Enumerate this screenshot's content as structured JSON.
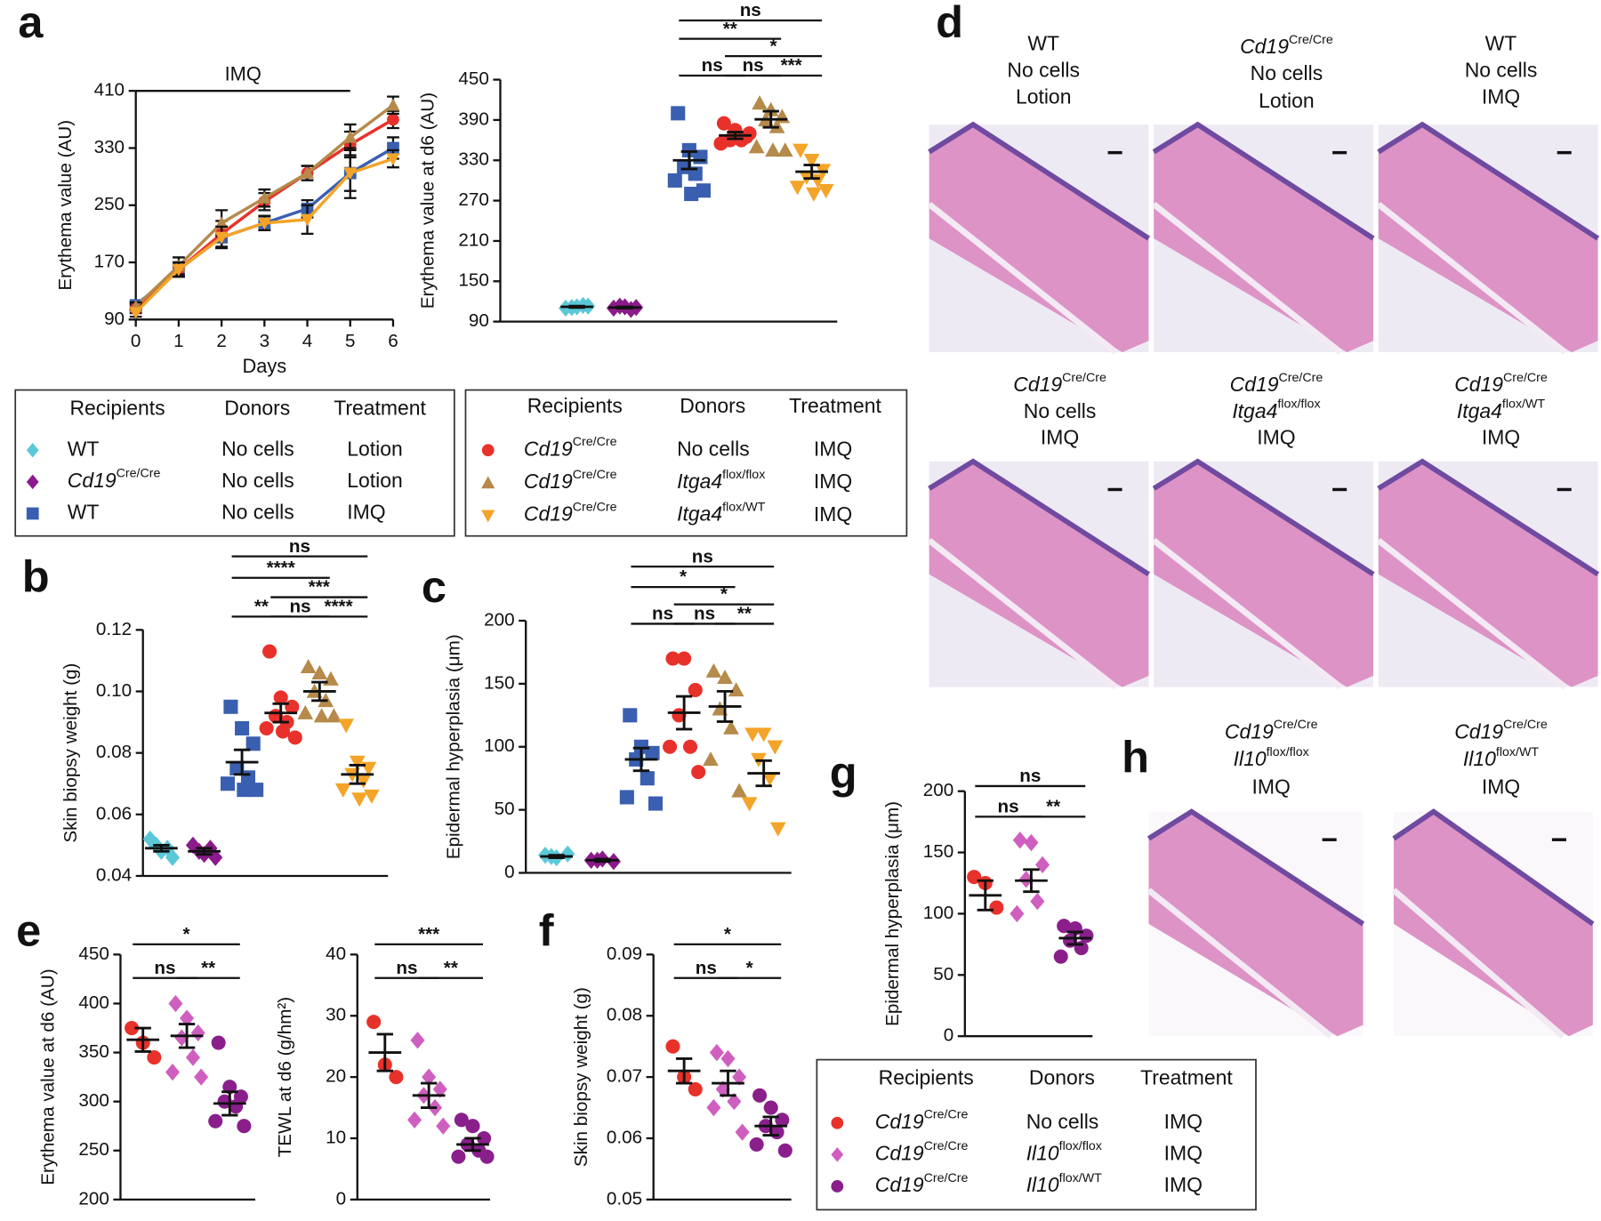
{
  "panel_labels": [
    "a",
    "b",
    "c",
    "d",
    "e",
    "f",
    "g",
    "h"
  ],
  "chart_data": [
    {
      "type": "line",
      "annotation": "IMQ",
      "annotation_span": [
        0,
        5
      ],
      "xlabel": "Days",
      "ylabel": "Erythema value (AU)",
      "x": [
        0,
        1,
        2,
        3,
        4,
        5,
        6
      ],
      "xlim": [
        0,
        6
      ],
      "xticks": [
        0,
        1,
        2,
        3,
        4,
        5,
        6
      ],
      "ylim": [
        90,
        410
      ],
      "yticks": [
        90,
        170,
        250,
        330,
        410
      ],
      "series": [
        {
          "color": "#3a5fb0",
          "marker": "square",
          "values": [
            110,
            160,
            205,
            225,
            245,
            295,
            330
          ],
          "errors": [
            6,
            10,
            15,
            10,
            12,
            25,
            15
          ]
        },
        {
          "color": "#e8312a",
          "marker": "circle",
          "values": [
            105,
            160,
            210,
            255,
            295,
            335,
            370
          ],
          "errors": [
            6,
            10,
            18,
            12,
            10,
            18,
            12
          ]
        },
        {
          "color": "#b58a4a",
          "marker": "triangle",
          "values": [
            108,
            165,
            225,
            260,
            295,
            345,
            390
          ],
          "errors": [
            6,
            12,
            18,
            12,
            10,
            18,
            12
          ]
        },
        {
          "color": "#f4a428",
          "marker": "triangle-down",
          "values": [
            100,
            160,
            205,
            225,
            230,
            295,
            315
          ],
          "errors": [
            6,
            10,
            15,
            10,
            20,
            35,
            12
          ]
        }
      ]
    },
    {
      "type": "strip",
      "ylabel": "Erythema value at d6 (AU)",
      "ylim": [
        90,
        450
      ],
      "yticks": [
        90,
        150,
        210,
        270,
        330,
        390,
        450
      ],
      "series": [
        {
          "color": "#5bc8d8",
          "marker": "diamond",
          "points": [
            110,
            112,
            113,
            111,
            114
          ],
          "mean": 112,
          "sem": 1
        },
        {
          "color": "#8b1a8b",
          "marker": "diamond",
          "points": [
            110,
            112,
            111,
            113,
            108
          ],
          "mean": 111,
          "sem": 1
        },
        {
          "color": "#3a5fb0",
          "marker": "square",
          "points": [
            400,
            345,
            335,
            320,
            310,
            300,
            285,
            280
          ],
          "mean": 330,
          "sem": 13
        },
        {
          "color": "#e8312a",
          "marker": "circle",
          "points": [
            385,
            375,
            365,
            360,
            360,
            355,
            370,
            365
          ],
          "mean": 367,
          "sem": 5
        },
        {
          "color": "#b58a4a",
          "marker": "triangle",
          "points": [
            415,
            405,
            395,
            390,
            380,
            350,
            345,
            345
          ],
          "mean": 391,
          "sem": 12
        },
        {
          "color": "#f4a428",
          "marker": "triangle-down",
          "points": [
            345,
            330,
            315,
            305,
            300,
            290,
            285,
            280
          ],
          "mean": 313,
          "sem": 10
        }
      ],
      "brackets": [
        [
          {
            "from": 2,
            "to": 5,
            "label": "ns"
          }
        ],
        [
          {
            "from": 2,
            "to": 4,
            "label": "**"
          }
        ],
        [
          {
            "from": 3,
            "to": 5,
            "label": "*"
          }
        ],
        [
          {
            "from": 2,
            "to": 3,
            "label": "ns"
          },
          {
            "from": 3,
            "to": 4,
            "label": "ns"
          },
          {
            "from": 4,
            "to": 5,
            "label": "***"
          }
        ]
      ]
    },
    {
      "type": "strip",
      "ylabel": "Skin biopsy weight (g)",
      "ylim": [
        0.04,
        0.12
      ],
      "yticks": [
        0.04,
        0.06,
        0.08,
        {
          "value": 0.1,
          "label": "0.10"
        },
        0.12
      ],
      "series": [
        {
          "color": "#5bc8d8",
          "marker": "diamond",
          "points": [
            0.052,
            0.048,
            0.046,
            0.05,
            0.049
          ],
          "mean": 0.049,
          "sem": 0.001
        },
        {
          "color": "#8b1a8b",
          "marker": "diamond",
          "points": [
            0.05,
            0.047,
            0.046,
            0.048,
            0.049
          ],
          "mean": 0.048,
          "sem": 0.001
        },
        {
          "color": "#3a5fb0",
          "marker": "square",
          "points": [
            0.095,
            0.088,
            0.083,
            0.075,
            0.072,
            0.07,
            0.068,
            0.068
          ],
          "mean": 0.077,
          "sem": 0.004
        },
        {
          "color": "#e8312a",
          "marker": "circle",
          "points": [
            0.113,
            0.098,
            0.095,
            0.092,
            0.09,
            0.088,
            0.085,
            0.087
          ],
          "mean": 0.093,
          "sem": 0.003
        },
        {
          "color": "#b58a4a",
          "marker": "triangle",
          "points": [
            0.108,
            0.106,
            0.104,
            0.1,
            0.097,
            0.093,
            0.092,
            0.092
          ],
          "mean": 0.1,
          "sem": 0.003
        },
        {
          "color": "#f4a428",
          "marker": "triangle-down",
          "points": [
            0.089,
            0.077,
            0.075,
            0.073,
            0.071,
            0.068,
            0.066,
            0.065
          ],
          "mean": 0.073,
          "sem": 0.003
        }
      ],
      "brackets": [
        [
          {
            "from": 2,
            "to": 5,
            "label": "ns"
          }
        ],
        [
          {
            "from": 2,
            "to": 4,
            "label": "****"
          }
        ],
        [
          {
            "from": 3,
            "to": 5,
            "label": "***"
          }
        ],
        [
          {
            "from": 2,
            "to": 3,
            "label": "**"
          },
          {
            "from": 3,
            "to": 4,
            "label": "ns"
          },
          {
            "from": 4,
            "to": 5,
            "label": "****"
          }
        ]
      ]
    },
    {
      "type": "strip",
      "ylabel": "Epidermal hyperplasia (μm)",
      "ylim": [
        0,
        200
      ],
      "yticks": [
        0,
        50,
        100,
        150,
        200
      ],
      "series": [
        {
          "color": "#5bc8d8",
          "marker": "diamond",
          "points": [
            14,
            12,
            15,
            13
          ],
          "mean": 13,
          "sem": 1
        },
        {
          "color": "#8b1a8b",
          "marker": "diamond",
          "points": [
            10,
            11,
            9,
            10
          ],
          "mean": 10,
          "sem": 1
        },
        {
          "color": "#3a5fb0",
          "marker": "square",
          "points": [
            125,
            100,
            95,
            90,
            75,
            60,
            55
          ],
          "mean": 90,
          "sem": 9
        },
        {
          "color": "#e8312a",
          "marker": "circle",
          "points": [
            170,
            170,
            145,
            125,
            100,
            100,
            80
          ],
          "mean": 127,
          "sem": 13
        },
        {
          "color": "#b58a4a",
          "marker": "triangle",
          "points": [
            160,
            155,
            145,
            130,
            115,
            90,
            65
          ],
          "mean": 132,
          "sem": 12
        },
        {
          "color": "#f4a428",
          "marker": "triangle-down",
          "points": [
            110,
            110,
            100,
            90,
            75,
            55,
            35
          ],
          "mean": 79,
          "sem": 10
        }
      ],
      "brackets": [
        [
          {
            "from": 2,
            "to": 5,
            "label": "ns"
          }
        ],
        [
          {
            "from": 2,
            "to": 4,
            "label": "*"
          }
        ],
        [
          {
            "from": 3,
            "to": 5,
            "label": "*"
          }
        ],
        [
          {
            "from": 2,
            "to": 3,
            "label": "ns"
          },
          {
            "from": 3,
            "to": 4,
            "label": "ns"
          },
          {
            "from": 4,
            "to": 5,
            "label": "**"
          }
        ]
      ]
    },
    {
      "type": "strip",
      "ylabel": "Erythema value at d6 (AU)",
      "ylim": [
        200,
        450
      ],
      "yticks": [
        200,
        250,
        300,
        350,
        400,
        450
      ],
      "series": [
        {
          "color": "#e8312a",
          "marker": "circle",
          "points": [
            375,
            360,
            345
          ],
          "mean": 363,
          "sem": 12
        },
        {
          "color": "#cf5fbf",
          "marker": "diamond",
          "points": [
            400,
            385,
            370,
            365,
            345,
            330,
            325
          ],
          "mean": 367,
          "sem": 12
        },
        {
          "color": "#8a1f8c",
          "marker": "circle",
          "points": [
            360,
            315,
            305,
            300,
            295,
            280,
            275
          ],
          "mean": 298,
          "sem": 12
        }
      ],
      "brackets": [
        [
          {
            "from": 0,
            "to": 2,
            "label": "*"
          }
        ],
        [
          {
            "from": 0,
            "to": 1,
            "label": "ns"
          },
          {
            "from": 1,
            "to": 2,
            "label": "**"
          }
        ]
      ]
    },
    {
      "type": "strip",
      "ylabel": "TEWL at d6 (g/hm²)",
      "ylim": [
        0,
        40
      ],
      "yticks": [
        0,
        10,
        20,
        30,
        40
      ],
      "series": [
        {
          "color": "#e8312a",
          "marker": "circle",
          "points": [
            29,
            22,
            20
          ],
          "mean": 24,
          "sem": 3
        },
        {
          "color": "#cf5fbf",
          "marker": "diamond",
          "points": [
            26,
            20,
            18,
            17,
            15,
            13,
            12
          ],
          "mean": 17,
          "sem": 2
        },
        {
          "color": "#8a1f8c",
          "marker": "circle",
          "points": [
            13,
            12,
            10,
            9,
            8,
            7,
            7
          ],
          "mean": 9,
          "sem": 1
        }
      ],
      "brackets": [
        [
          {
            "from": 0,
            "to": 2,
            "label": "***"
          }
        ],
        [
          {
            "from": 0,
            "to": 1,
            "label": "ns"
          },
          {
            "from": 1,
            "to": 2,
            "label": "**"
          }
        ]
      ]
    },
    {
      "type": "strip",
      "ylabel": "Skin biopsy weight (g)",
      "ylim": [
        0.05,
        0.09
      ],
      "yticks": [
        0.05,
        0.06,
        0.07,
        0.08,
        0.09
      ],
      "series": [
        {
          "color": "#e8312a",
          "marker": "circle",
          "points": [
            0.075,
            0.07,
            0.068
          ],
          "mean": 0.071,
          "sem": 0.002
        },
        {
          "color": "#cf5fbf",
          "marker": "diamond",
          "points": [
            0.074,
            0.073,
            0.07,
            0.068,
            0.066,
            0.065,
            0.061
          ],
          "mean": 0.069,
          "sem": 0.002
        },
        {
          "color": "#8a1f8c",
          "marker": "circle",
          "points": [
            0.067,
            0.065,
            0.063,
            0.062,
            0.061,
            0.059,
            0.058
          ],
          "mean": 0.062,
          "sem": 0.0015
        }
      ],
      "brackets": [
        [
          {
            "from": 0,
            "to": 2,
            "label": "*"
          }
        ],
        [
          {
            "from": 0,
            "to": 1,
            "label": "ns"
          },
          {
            "from": 1,
            "to": 2,
            "label": "*"
          }
        ]
      ]
    },
    {
      "type": "strip",
      "ylabel": "Epidermal hyperplasia (μm)",
      "ylim": [
        0,
        200
      ],
      "yticks": [
        0,
        50,
        100,
        150,
        200
      ],
      "series": [
        {
          "color": "#e8312a",
          "marker": "circle",
          "points": [
            130,
            125,
            105
          ],
          "mean": 115,
          "sem": 12
        },
        {
          "color": "#cf5fbf",
          "marker": "diamond",
          "points": [
            160,
            158,
            140,
            128,
            110,
            100
          ],
          "mean": 127,
          "sem": 9
        },
        {
          "color": "#8a1f8c",
          "marker": "circle",
          "points": [
            90,
            88,
            82,
            78,
            72,
            65
          ],
          "mean": 80,
          "sem": 5
        }
      ],
      "brackets": [
        [
          {
            "from": 0,
            "to": 2,
            "label": "ns"
          }
        ],
        [
          {
            "from": 0,
            "to": 1,
            "label": "ns"
          },
          {
            "from": 1,
            "to": 2,
            "label": "**"
          }
        ]
      ]
    }
  ],
  "legends": [
    {
      "headers": [
        "Recipients",
        "Donors",
        "Treatment"
      ],
      "rows": [
        {
          "marker": "diamond",
          "color": "#5bc8d8",
          "cells": [
            "WT",
            "No cells",
            "Lotion"
          ]
        },
        {
          "marker": "diamond",
          "color": "#8b1a8b",
          "cells": [
            {
              "base": "Cd19",
              "sup": "Cre/Cre"
            },
            "No cells",
            "Lotion"
          ]
        },
        {
          "marker": "square",
          "color": "#3a5fb0",
          "cells": [
            "WT",
            "No cells",
            "IMQ"
          ]
        }
      ]
    },
    {
      "headers": [
        "Recipients",
        "Donors",
        "Treatment"
      ],
      "rows": [
        {
          "marker": "circle",
          "color": "#e8312a",
          "cells": [
            {
              "base": "Cd19",
              "sup": "Cre/Cre"
            },
            "No cells",
            "IMQ"
          ]
        },
        {
          "marker": "triangle",
          "color": "#b58a4a",
          "cells": [
            {
              "base": "Cd19",
              "sup": "Cre/Cre"
            },
            {
              "base": "Itga4",
              "sup": "flox/flox"
            },
            "IMQ"
          ]
        },
        {
          "marker": "triangle-down",
          "color": "#f4a428",
          "cells": [
            {
              "base": "Cd19",
              "sup": "Cre/Cre"
            },
            {
              "base": "Itga4",
              "sup": "flox/WT"
            },
            "IMQ"
          ]
        }
      ]
    },
    {
      "headers": [
        "Recipients",
        "Donors",
        "Treatment"
      ],
      "rows": [
        {
          "marker": "circle",
          "color": "#e8312a",
          "cells": [
            {
              "base": "Cd19",
              "sup": "Cre/Cre"
            },
            "No cells",
            "IMQ"
          ]
        },
        {
          "marker": "diamond",
          "color": "#cf5fbf",
          "cells": [
            {
              "base": "Cd19",
              "sup": "Cre/Cre"
            },
            {
              "base": "Il10",
              "sup": "flox/flox"
            },
            "IMQ"
          ]
        },
        {
          "marker": "circle",
          "color": "#8a1f8c",
          "cells": [
            {
              "base": "Cd19",
              "sup": "Cre/Cre"
            },
            {
              "base": "Il10",
              "sup": "flox/WT"
            },
            "IMQ"
          ]
        }
      ]
    }
  ],
  "images": [
    {
      "label": [
        "WT",
        "No cells",
        "Lotion"
      ]
    },
    {
      "label": [
        {
          "base": "Cd19",
          "sup": "Cre/Cre"
        },
        "No cells",
        "Lotion"
      ]
    },
    {
      "label": [
        "WT",
        "No cells",
        "IMQ"
      ]
    },
    {
      "label": [
        {
          "base": "Cd19",
          "sup": "Cre/Cre"
        },
        "No cells",
        "IMQ"
      ]
    },
    {
      "label": [
        {
          "base": "Cd19",
          "sup": "Cre/Cre"
        },
        {
          "base": "Itga4",
          "sup": "flox/flox"
        },
        "IMQ"
      ]
    },
    {
      "label": [
        {
          "base": "Cd19",
          "sup": "Cre/Cre"
        },
        {
          "base": "Itga4",
          "sup": "flox/WT"
        },
        "IMQ"
      ]
    },
    {
      "label": [
        {
          "base": "Cd19",
          "sup": "Cre/Cre"
        },
        {
          "base": "Il10",
          "sup": "flox/flox"
        },
        "IMQ"
      ]
    },
    {
      "label": [
        {
          "base": "Cd19",
          "sup": "Cre/Cre"
        },
        {
          "base": "Il10",
          "sup": "flox/WT"
        },
        "IMQ"
      ]
    }
  ]
}
